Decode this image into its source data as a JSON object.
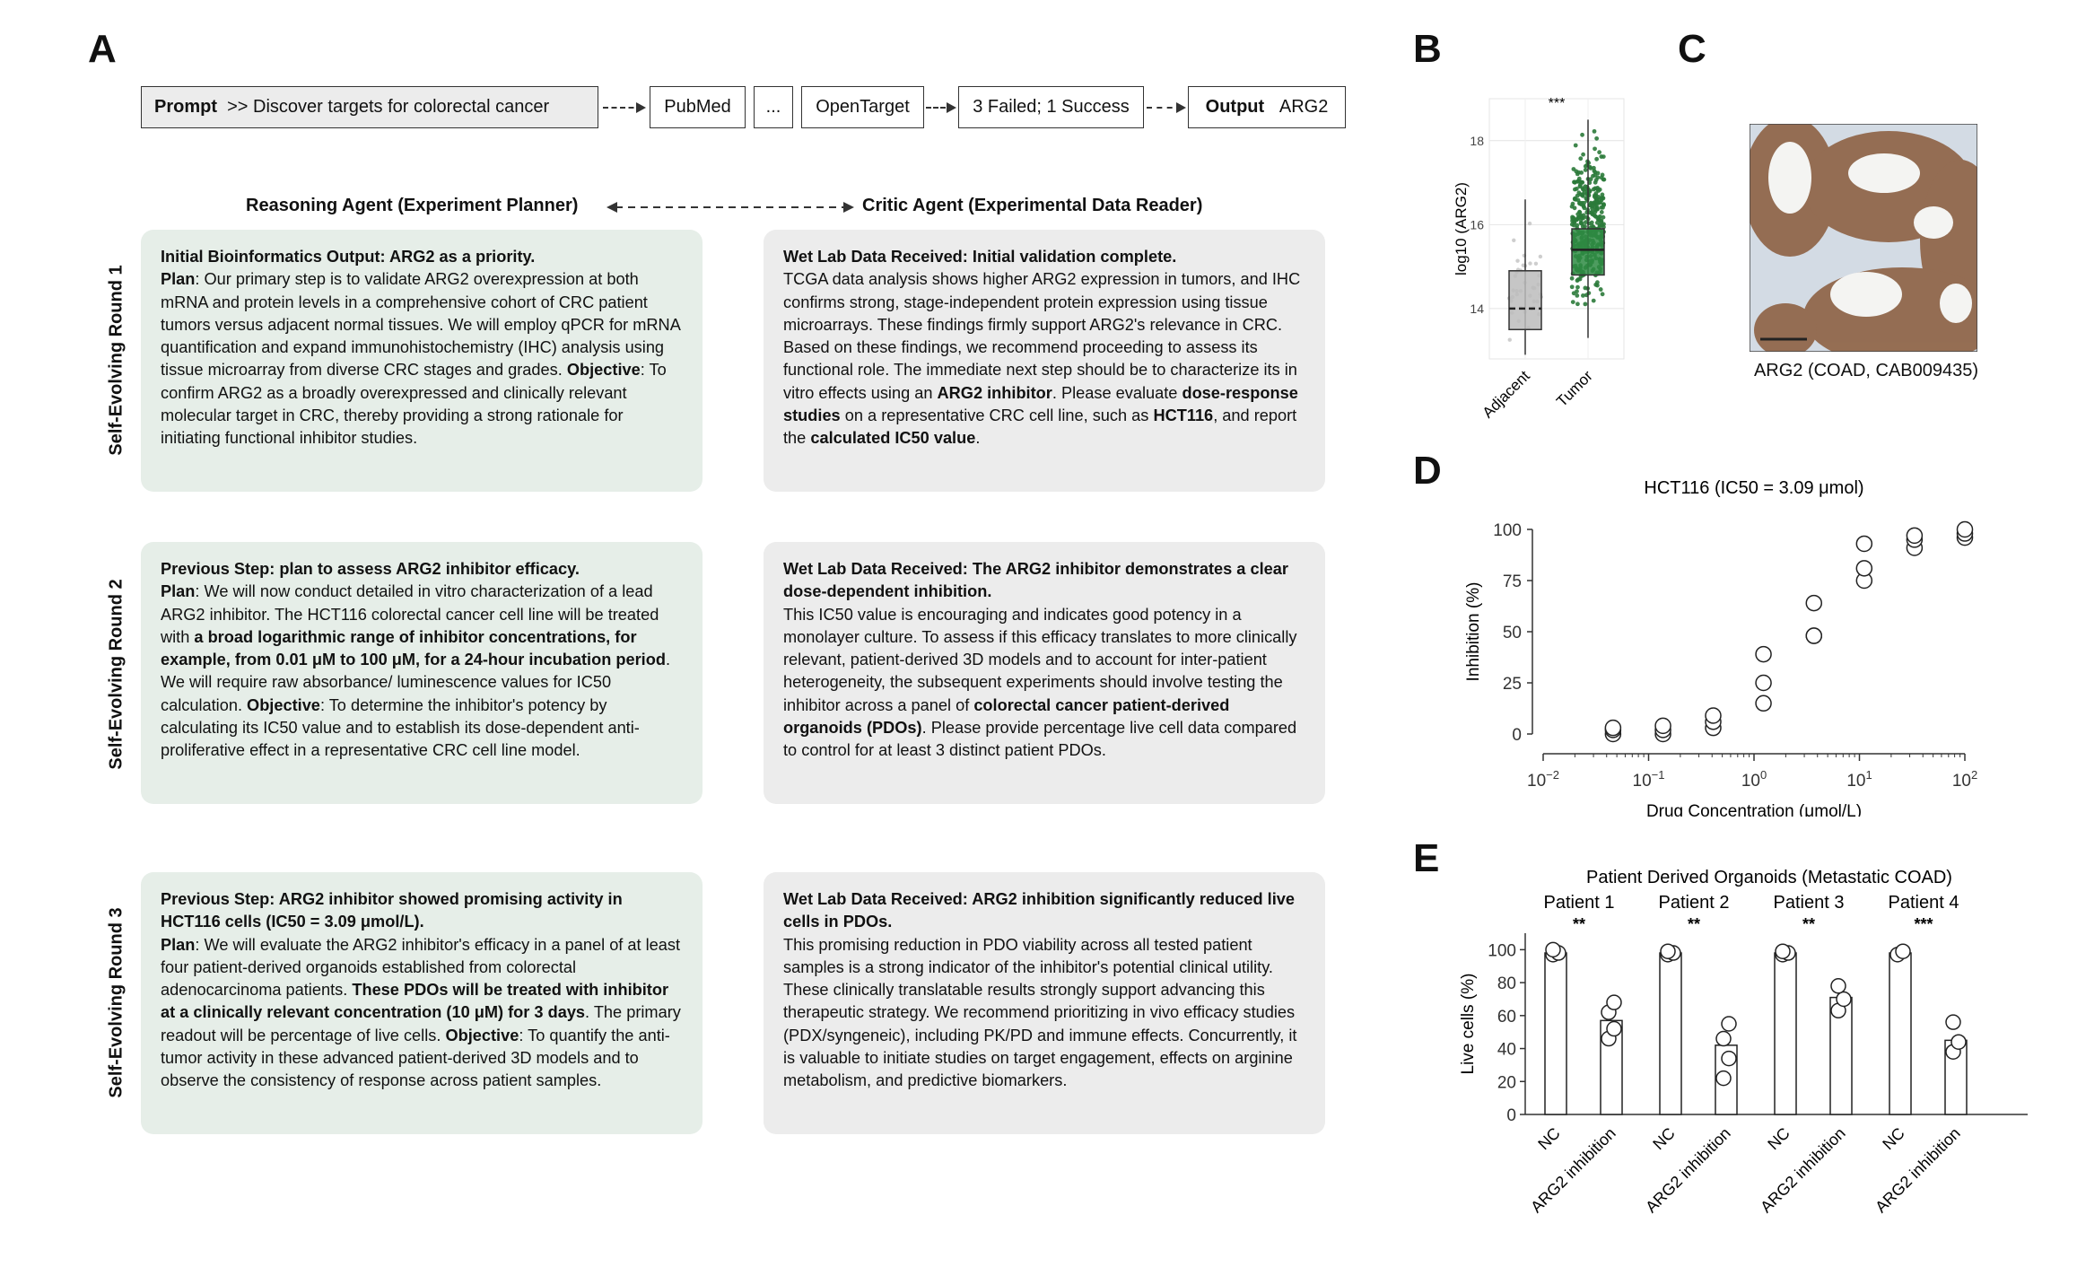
{
  "panels": {
    "a": "A",
    "b": "B",
    "c": "C",
    "d": "D",
    "e": "E"
  },
  "flow": {
    "prompt_label": "Prompt",
    "prompt_text": ">> Discover targets for colorectal cancer",
    "pubmed": "PubMed",
    "ellipsis": "...",
    "opentarget": "OpenTarget",
    "status": "3 Failed; 1 Success",
    "output_label": "Output",
    "output_value": "ARG2"
  },
  "agents": {
    "reasoning": "Reasoning Agent (Experiment Planner)",
    "critic": "Critic Agent  (Experimental Data Reader)"
  },
  "rounds": [
    "Self-Evolving Round 1",
    "Self-Evolving Round 2",
    "Self-Evolving Round 3"
  ],
  "cards": {
    "r1_left": {
      "title": "Initial Bioinformatics Output: ARG2 as a priority.",
      "plan_label": "Plan",
      "plan_text": ": Our primary step is to validate ARG2 overexpression at both mRNA and protein levels in a comprehensive cohort of CRC patient tumors versus adjacent normal tissues. We will employ qPCR for mRNA quantification and expand immunohistochemistry (IHC) analysis using tissue microarray from diverse CRC stages and grades. ",
      "obj_label": "Objective",
      "obj_text": ": To confirm ARG2 as a broadly overexpressed and clinically relevant molecular target in CRC, thereby providing a strong rationale for initiating functional inhibitor studies."
    },
    "r1_right": {
      "title": "Wet Lab Data Received: Initial validation complete.",
      "t1": "TCGA data analysis shows higher ARG2 expression in tumors, and IHC confirms strong, stage-independent protein expression using tissue microarrays. These findings firmly support ARG2's relevance in CRC. Based on these findings, we recommend proceeding to assess its functional role. The immediate next step should be to characterize its in vitro effects using an ",
      "b1": "ARG2 inhibitor",
      "t2": ". Please evaluate ",
      "b2": "dose-response studies",
      "t3": " on a representative CRC cell line, such as ",
      "b3": "HCT116",
      "t4": ", and report the ",
      "b4": "calculated IC50 value",
      "t5": "."
    },
    "r2_left": {
      "title": "Previous Step: plan to assess ARG2 inhibitor efficacy.",
      "plan_label": "Plan",
      "t1": ": We will now conduct detailed in vitro characterization of a lead ARG2 inhibitor. The HCT116 colorectal cancer cell line will be treated with ",
      "b1": "a broad logarithmic range of inhibitor concentrations, for example, from 0.01 μM to 100 μM, for a 24-hour incubation period",
      "t2": ". We will require raw absorbance/ luminescence values for IC50 calculation. ",
      "obj_label": "Objective",
      "obj_text": ": To determine the inhibitor's potency by calculating its IC50 value and to establish its dose-dependent anti-proliferative effect in a representative CRC cell line model."
    },
    "r2_right": {
      "title": "Wet Lab Data Received: The ARG2 inhibitor demonstrates a clear dose-dependent inhibition.",
      "t1": "This IC50 value is encouraging and indicates good potency in a monolayer culture. To assess if this efficacy translates to more clinically relevant, patient-derived 3D models and to account for inter-patient heterogeneity, the subsequent experiments should involve testing the inhibitor across a panel of ",
      "b1": "colorectal cancer patient-derived organoids (PDOs)",
      "t2": ". Please provide percentage live cell data compared to control for at least 3 distinct patient PDOs."
    },
    "r3_left": {
      "title": "Previous Step: ARG2 inhibitor showed promising activity in HCT116 cells (IC50 = 3.09 μmol/L).",
      "plan_label": "Plan",
      "t1": ": We will evaluate the ARG2 inhibitor's efficacy in a panel of at least four patient-derived organoids established from colorectal adenocarcinoma patients. ",
      "b1": "These PDOs will be treated with inhibitor at a clinically relevant concentration (10 μM) for 3 days",
      "t2": ". The primary readout will be percentage of live cells. ",
      "obj_label": "Objective",
      "obj_text": ": To quantify the anti-tumor activity in these advanced patient-derived 3D models and to observe the consistency of response across patient samples."
    },
    "r3_right": {
      "title": "Wet Lab Data Received: ARG2 inhibition significantly reduced live cells in PDOs.",
      "t1": "This promising reduction in PDO viability across all tested patient samples is a strong indicator of the inhibitor's potential clinical utility. These clinically translatable results strongly support advancing this therapeutic strategy. We recommend prioritizing in vivo efficacy studies (PDX/syngeneic), including PK/PD and immune effects. Concurrently, it is valuable to initiate studies on target engagement, effects on arginine metabolism, and predictive biomarkers."
    }
  },
  "ihc": {
    "caption": "ARG2 (COAD, CAB009435)",
    "colors": {
      "background": "#d3dbe4",
      "stain": "#8a5a3a",
      "lumen": "#f4f4f2"
    }
  },
  "chart_data": [
    {
      "type": "box",
      "panel": "B",
      "ylabel": "log10 (ARG2)",
      "categories": [
        "Adjacent",
        "Tumor"
      ],
      "ylim": [
        12.8,
        19
      ],
      "yticks": [
        14,
        16,
        18
      ],
      "significance": "***",
      "boxes": [
        {
          "name": "Adjacent",
          "q1": 13.5,
          "median": 14.0,
          "q3": 14.9,
          "low": 12.9,
          "high": 16.6,
          "color": "#bcbcbc"
        },
        {
          "name": "Tumor",
          "q1": 14.8,
          "median": 15.4,
          "q3": 15.9,
          "low": 13.3,
          "high": 18.5,
          "color": "#2e8b43"
        }
      ],
      "grid": true
    },
    {
      "type": "scatter",
      "panel": "D",
      "title": "HCT116  (IC50 = 3.09 μmol)",
      "xlabel": "Drug Concentration (μmol/L)",
      "ylabel": "Inhibition (%)",
      "xscale": "log",
      "xlim": [
        0.01,
        100
      ],
      "ylim": [
        0,
        100
      ],
      "xticks": [
        "10−2",
        "10−1",
        "100",
        "101",
        "102"
      ],
      "yticks": [
        0,
        25,
        50,
        75,
        100
      ],
      "points": [
        {
          "x": 0.046,
          "y": 0
        },
        {
          "x": 0.046,
          "y": 2
        },
        {
          "x": 0.046,
          "y": 3
        },
        {
          "x": 0.137,
          "y": 0
        },
        {
          "x": 0.137,
          "y": 2
        },
        {
          "x": 0.137,
          "y": 4
        },
        {
          "x": 0.41,
          "y": 3
        },
        {
          "x": 0.41,
          "y": 6
        },
        {
          "x": 0.41,
          "y": 9
        },
        {
          "x": 1.23,
          "y": 15
        },
        {
          "x": 1.23,
          "y": 25
        },
        {
          "x": 1.23,
          "y": 39
        },
        {
          "x": 3.7,
          "y": 48
        },
        {
          "x": 3.7,
          "y": 48
        },
        {
          "x": 3.7,
          "y": 64
        },
        {
          "x": 11.1,
          "y": 75
        },
        {
          "x": 11.1,
          "y": 81
        },
        {
          "x": 11.1,
          "y": 93
        },
        {
          "x": 33.3,
          "y": 91
        },
        {
          "x": 33.3,
          "y": 95
        },
        {
          "x": 33.3,
          "y": 97
        },
        {
          "x": 100,
          "y": 96
        },
        {
          "x": 100,
          "y": 98
        },
        {
          "x": 100,
          "y": 100
        }
      ]
    },
    {
      "type": "bar",
      "panel": "E",
      "title": "Patient Derived Organoids (Metastatic COAD)",
      "ylabel": "Live cells (%)",
      "ylim": [
        0,
        110
      ],
      "yticks": [
        0,
        20,
        40,
        60,
        80,
        100
      ],
      "groups": [
        {
          "name": "Patient 1",
          "sig": "**",
          "bars": [
            {
              "label": "NC",
              "value": 98,
              "points": [
                97,
                98,
                100
              ]
            },
            {
              "label": "ARG2 inhibition",
              "value": 57,
              "points": [
                46,
                52,
                62,
                68
              ]
            }
          ]
        },
        {
          "name": "Patient 2",
          "sig": "**",
          "bars": [
            {
              "label": "NC",
              "value": 98,
              "points": [
                97,
                98,
                99
              ]
            },
            {
              "label": "ARG2 inhibition",
              "value": 42,
              "points": [
                22,
                34,
                46,
                55
              ]
            }
          ]
        },
        {
          "name": "Patient 3",
          "sig": "**",
          "bars": [
            {
              "label": "NC",
              "value": 98,
              "points": [
                97,
                98,
                99
              ]
            },
            {
              "label": "ARG2 inhibition",
              "value": 71,
              "points": [
                63,
                70,
                78
              ]
            }
          ]
        },
        {
          "name": "Patient 4",
          "sig": "***",
          "bars": [
            {
              "label": "NC",
              "value": 98,
              "points": [
                97,
                99
              ]
            },
            {
              "label": "ARG2 inhibition",
              "value": 45,
              "points": [
                38,
                44,
                56
              ]
            }
          ]
        }
      ]
    }
  ]
}
